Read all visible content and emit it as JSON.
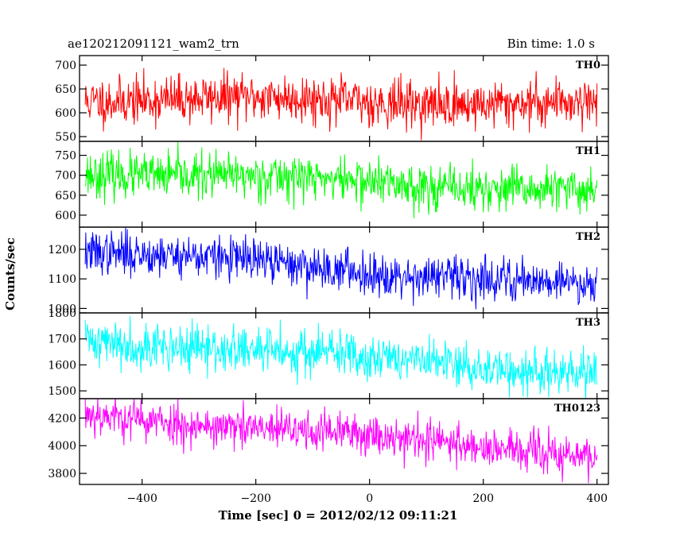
{
  "chart_data": {
    "type": "line",
    "title": "ae120212091121_wam2_trn",
    "subtitle": "Bin time: 1.0 s",
    "xlabel": "Time [sec] 0 = 2012/02/12 09:11:21",
    "ylabel": "Counts/sec",
    "xlim": [
      -510,
      420
    ],
    "x_start": -500,
    "x_end": 400,
    "x_step": 1,
    "xticks": [
      -400,
      -200,
      0,
      200,
      400
    ],
    "xtick_labels": [
      "−400",
      "−200",
      "0",
      "200",
      "400"
    ],
    "grid": false,
    "panels": [
      {
        "name": "TH0",
        "color": "#ff0000",
        "ylim": [
          540,
          720
        ],
        "yticks": [
          550,
          600,
          650,
          700
        ],
        "start_mean": 630,
        "end_mean": 620,
        "scatter": 25,
        "seed": 11
      },
      {
        "name": "TH1",
        "color": "#00ff00",
        "ylim": [
          570,
          785
        ],
        "yticks": [
          600,
          650,
          700,
          750
        ],
        "start_mean": 710,
        "end_mean": 660,
        "scatter": 28,
        "seed": 23
      },
      {
        "name": "TH2",
        "color": "#0000ff",
        "ylim": [
          985,
          1275
        ],
        "yticks": [
          1000,
          1100,
          1200
        ],
        "start_mean": 1195,
        "end_mean": 1075,
        "scatter": 36,
        "seed": 37
      },
      {
        "name": "TH3",
        "color": "#00ffff",
        "ylim": [
          1470,
          1800
        ],
        "yticks": [
          1500,
          1600,
          1700,
          1800
        ],
        "start_mean": 1700,
        "end_mean": 1565,
        "scatter": 45,
        "seed": 41
      },
      {
        "name": "TH0123",
        "color": "#ff00ff",
        "ylim": [
          3720,
          4340
        ],
        "yticks": [
          3800,
          4000,
          4200
        ],
        "start_mean": 4230,
        "end_mean": 3930,
        "scatter": 75,
        "seed": 53
      }
    ]
  }
}
